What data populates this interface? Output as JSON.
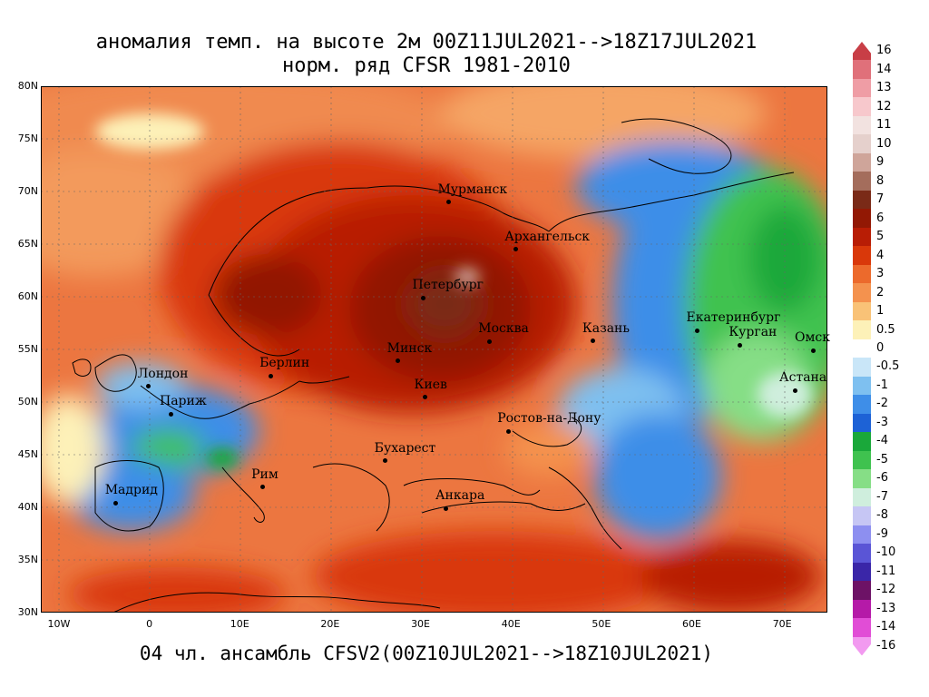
{
  "title": {
    "line1": "аномалия темп. на высоте 2м 00Z11JUL2021-->18Z17JUL2021",
    "line2": "норм. ряд CFSR 1981-2010"
  },
  "subtitle_bottom": "04 чл. ансамбль CFSV2(00Z10JUL2021-->18Z10JUL2021)",
  "lat_labels": [
    "80N",
    "75N",
    "70N",
    "65N",
    "60N",
    "55N",
    "50N",
    "45N",
    "40N",
    "35N",
    "30N"
  ],
  "lon_labels": [
    "10W",
    "0",
    "10E",
    "20E",
    "30E",
    "40E",
    "50E",
    "60E",
    "70E"
  ],
  "cities": [
    {
      "name": "Мурманск",
      "lon": 33.1,
      "lat": 68.97
    },
    {
      "name": "Архангельск",
      "lon": 40.5,
      "lat": 64.5
    },
    {
      "name": "Петербург",
      "lon": 30.3,
      "lat": 59.9
    },
    {
      "name": "Москва",
      "lon": 37.6,
      "lat": 55.75
    },
    {
      "name": "Казань",
      "lon": 49.1,
      "lat": 55.8
    },
    {
      "name": "Екатеринбург",
      "lon": 60.6,
      "lat": 56.8
    },
    {
      "name": "Курган",
      "lon": 65.3,
      "lat": 55.4
    },
    {
      "name": "Омск",
      "lon": 73.4,
      "lat": 54.9
    },
    {
      "name": "Астана",
      "lon": 71.4,
      "lat": 51.1
    },
    {
      "name": "Минск",
      "lon": 27.5,
      "lat": 53.9
    },
    {
      "name": "Берлин",
      "lon": 13.4,
      "lat": 52.5
    },
    {
      "name": "Лондон",
      "lon": -0.1,
      "lat": 51.5
    },
    {
      "name": "Париж",
      "lon": 2.35,
      "lat": 48.85
    },
    {
      "name": "Киев",
      "lon": 30.5,
      "lat": 50.45
    },
    {
      "name": "Ростов-на-Дону",
      "lon": 39.7,
      "lat": 47.2
    },
    {
      "name": "Бухарест",
      "lon": 26.1,
      "lat": 44.4
    },
    {
      "name": "Рим",
      "lon": 12.5,
      "lat": 41.9
    },
    {
      "name": "Мадрид",
      "lon": -3.7,
      "lat": 40.4
    },
    {
      "name": "Анкара",
      "lon": 32.85,
      "lat": 39.9
    }
  ],
  "colorbar": {
    "labels": [
      "16",
      "14",
      "13",
      "12",
      "11",
      "10",
      "9",
      "8",
      "7",
      "6",
      "5",
      "4",
      "3",
      "2",
      "1",
      "0.5",
      "0",
      "-0.5",
      "-1",
      "-2",
      "-3",
      "-4",
      "-5",
      "-6",
      "-7",
      "-8",
      "-9",
      "-10",
      "-11",
      "-12",
      "-13",
      "-14",
      "-16"
    ],
    "colors": [
      "#c83e46",
      "#e0707a",
      "#ef9da5",
      "#f7c8cc",
      "#f2e2e0",
      "#e5d0cc",
      "#cfa59a",
      "#a46d5c",
      "#7a2a17",
      "#921804",
      "#b81d05",
      "#d9380a",
      "#ec6a2c",
      "#f4924e",
      "#f9c277",
      "#fdf1b8",
      "#ffffff",
      "#c9e6f8",
      "#7ec0f0",
      "#3e8ee8",
      "#1d62d6",
      "#1aa83a",
      "#3fc24f",
      "#86de86",
      "#cfeedd",
      "#c6c6f4",
      "#8d8ff0",
      "#5a55d6",
      "#3a26a8",
      "#6d1266",
      "#b51aa8",
      "#e14dd6",
      "#f29af0"
    ],
    "fill_level": "0"
  }
}
